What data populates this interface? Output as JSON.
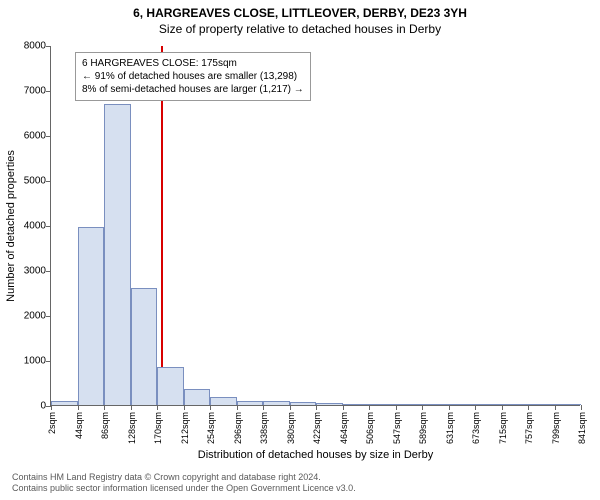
{
  "titles": {
    "line1": "6, HARGREAVES CLOSE, LITTLEOVER, DERBY, DE23 3YH",
    "line2": "Size of property relative to detached houses in Derby"
  },
  "chart": {
    "type": "histogram",
    "ylabel": "Number of detached properties",
    "xlabel": "Distribution of detached houses by size in Derby",
    "ylim": [
      0,
      8000
    ],
    "ytick_step": 1000,
    "xticks": [
      "2sqm",
      "44sqm",
      "86sqm",
      "128sqm",
      "170sqm",
      "212sqm",
      "254sqm",
      "296sqm",
      "338sqm",
      "380sqm",
      "422sqm",
      "464sqm",
      "506sqm",
      "547sqm",
      "589sqm",
      "631sqm",
      "673sqm",
      "715sqm",
      "757sqm",
      "799sqm",
      "841sqm"
    ],
    "bar_values": [
      90,
      3950,
      6700,
      2600,
      850,
      350,
      170,
      100,
      80,
      60,
      40,
      20,
      15,
      10,
      8,
      6,
      5,
      4,
      3,
      2
    ],
    "bar_fill": "#d6e0f0",
    "bar_stroke": "#7a8fbf",
    "bar_gap_ratio": 0.0,
    "refline_x_ratio": 0.207,
    "refline_color": "#d80000",
    "background_color": "#ffffff",
    "axis_color": "#666666",
    "tick_fontsize": 10,
    "label_fontsize": 11
  },
  "annotation": {
    "line1": "6 HARGREAVES CLOSE: 175sqm",
    "line2": "← 91% of detached houses are smaller (13,298)",
    "line3": "8% of semi-detached houses are larger (1,217) →"
  },
  "footer": {
    "line1": "Contains HM Land Registry data © Crown copyright and database right 2024.",
    "line2": "Contains public sector information licensed under the Open Government Licence v3.0."
  }
}
